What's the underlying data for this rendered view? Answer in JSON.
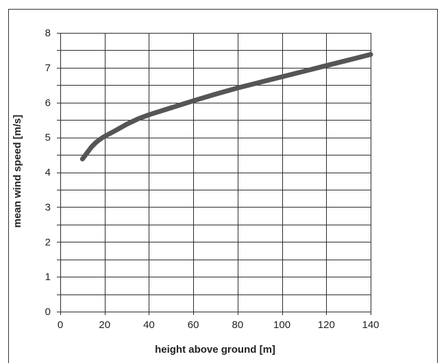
{
  "chart_data": {
    "type": "line",
    "title": "",
    "xlabel": "height above ground [m]",
    "ylabel": "mean wind speed  [m/s]",
    "xlim": [
      0,
      140
    ],
    "ylim": [
      0,
      8
    ],
    "x_ticks": [
      0,
      20,
      40,
      60,
      80,
      100,
      120,
      140
    ],
    "y_ticks": [
      0,
      1,
      2,
      3,
      4,
      5,
      6,
      7,
      8
    ],
    "grid": true,
    "legend": "none",
    "series": [
      {
        "color": "#555555",
        "x": [
          10,
          12,
          14,
          16,
          18,
          20,
          25,
          30,
          35,
          40,
          50,
          60,
          70,
          80,
          90,
          100,
          110,
          120,
          130,
          140
        ],
        "y": [
          4.38,
          4.55,
          4.72,
          4.85,
          4.95,
          5.03,
          5.2,
          5.38,
          5.53,
          5.65,
          5.85,
          6.05,
          6.24,
          6.42,
          6.58,
          6.74,
          6.9,
          7.06,
          7.22,
          7.38
        ]
      }
    ]
  }
}
